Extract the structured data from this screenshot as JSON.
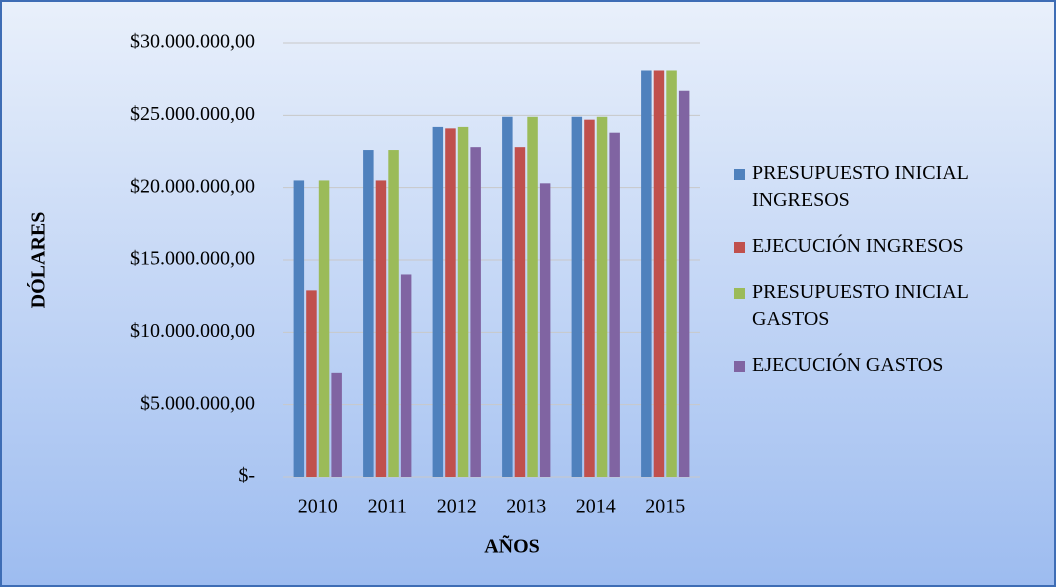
{
  "chart_data": {
    "type": "bar",
    "categories": [
      "2010",
      "2011",
      "2012",
      "2013",
      "2014",
      "2015"
    ],
    "series": [
      {
        "name": "PRESUPUESTO INICIAL INGRESOS",
        "color": "#4f81bd",
        "values": [
          20500000,
          22600000,
          24200000,
          24900000,
          24900000,
          28100000
        ]
      },
      {
        "name": "EJECUCIÓN INGRESOS",
        "color": "#c0504d",
        "values": [
          12900000,
          20500000,
          24100000,
          22800000,
          24700000,
          28100000
        ]
      },
      {
        "name": "PRESUPUESTO INICIAL GASTOS",
        "color": "#9bbb59",
        "values": [
          20500000,
          22600000,
          24200000,
          24900000,
          24900000,
          28100000
        ]
      },
      {
        "name": "EJECUCIÓN GASTOS",
        "color": "#8064a2",
        "values": [
          7200000,
          14000000,
          22800000,
          20300000,
          23800000,
          26700000
        ]
      }
    ],
    "xlabel": "AÑOS",
    "ylabel": "DÓLARES",
    "ylim": [
      0,
      30000000
    ],
    "yticks": [
      {
        "value": 0,
        "label": "$-"
      },
      {
        "value": 5000000,
        "label": "$5.000.000,00"
      },
      {
        "value": 10000000,
        "label": "$10.000.000,00"
      },
      {
        "value": 15000000,
        "label": "$15.000.000,00"
      },
      {
        "value": 20000000,
        "label": "$20.000.000,00"
      },
      {
        "value": 25000000,
        "label": "$25.000.000,00"
      },
      {
        "value": 30000000,
        "label": "$30.000.000,00"
      }
    ],
    "grid": true,
    "legend": "right"
  }
}
